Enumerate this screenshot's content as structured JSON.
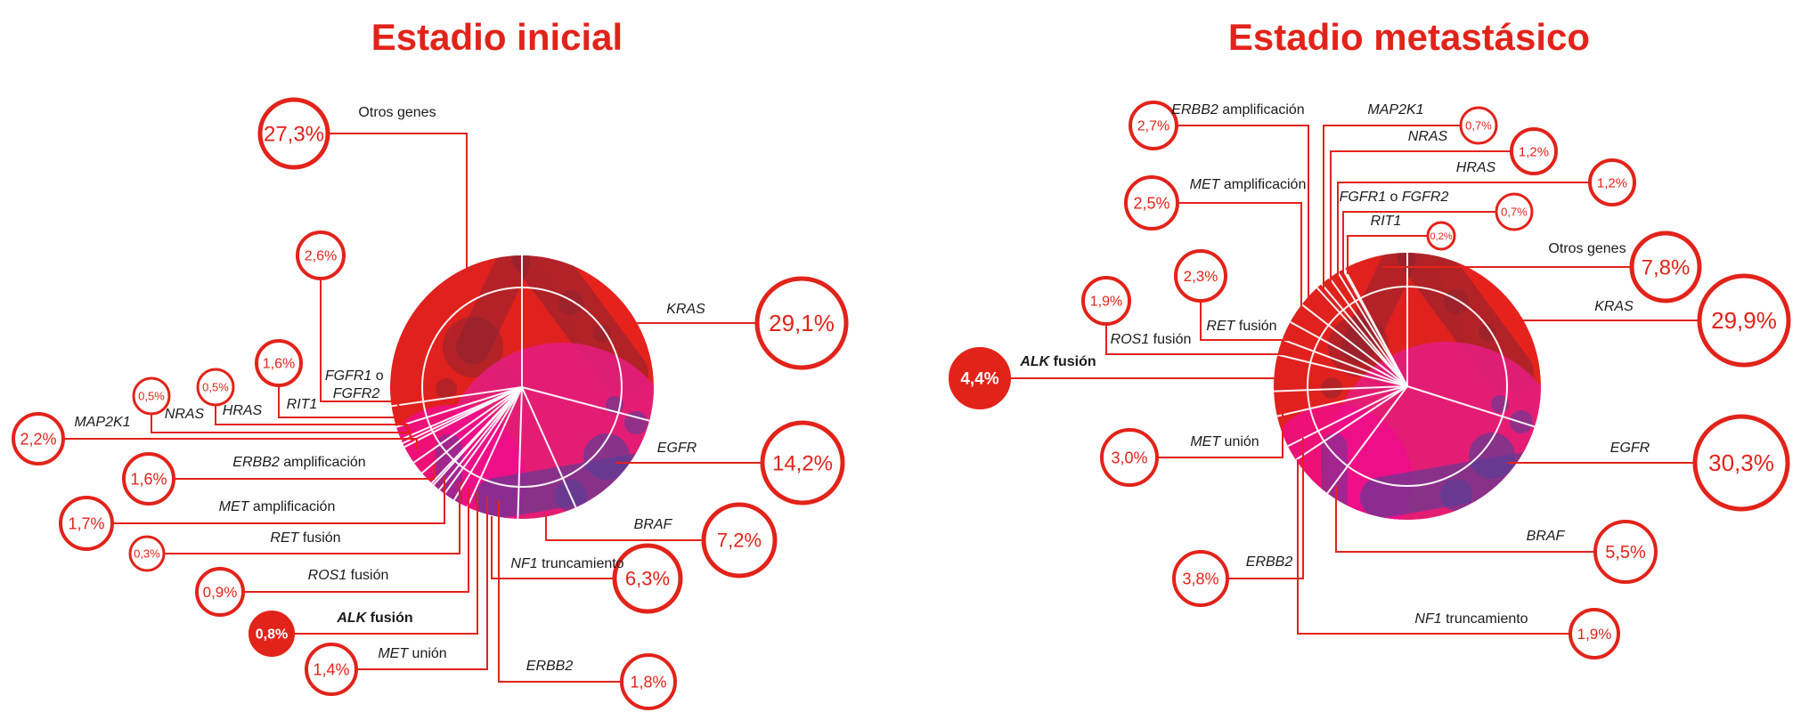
{
  "colors": {
    "red": "#e2231a",
    "pie_base": "#e6221d",
    "magenta": "#e41d7c",
    "pink": "#f00d8d",
    "purple": "#583d96",
    "maroon": "#7f2433",
    "text": "#1b1b1b",
    "white": "#ffffff"
  },
  "chart_data": [
    {
      "type": "pie",
      "title": "Estadio inicial",
      "unit": "%",
      "start_angle_deg": 0,
      "direction": "clockwise",
      "legend_position": "around",
      "segments": [
        {
          "id": "kras",
          "label": "KRAS",
          "parts": [
            {
              "t": "KRAS",
              "i": true
            }
          ],
          "value": 29.1,
          "display": "29,1%",
          "filled": false,
          "bold": false
        },
        {
          "id": "egfr",
          "label": "EGFR",
          "parts": [
            {
              "t": "EGFR",
              "i": true
            }
          ],
          "value": 14.2,
          "display": "14,2%",
          "filled": false,
          "bold": false
        },
        {
          "id": "braf",
          "label": "BRAF",
          "parts": [
            {
              "t": "BRAF",
              "i": true
            }
          ],
          "value": 7.2,
          "display": "7,2%",
          "filled": false,
          "bold": false
        },
        {
          "id": "nf1",
          "label": "NF1 truncamiento",
          "parts": [
            {
              "t": "NF1",
              "i": true
            },
            {
              "t": " truncamiento",
              "i": false
            }
          ],
          "value": 6.3,
          "display": "6,3%",
          "filled": false,
          "bold": false
        },
        {
          "id": "erbb2",
          "label": "ERBB2",
          "parts": [
            {
              "t": "ERBB2",
              "i": true
            }
          ],
          "value": 1.8,
          "display": "1,8%",
          "filled": false,
          "bold": false
        },
        {
          "id": "met-union",
          "label": "MET unión",
          "parts": [
            {
              "t": "MET",
              "i": true
            },
            {
              "t": " unión",
              "i": false
            }
          ],
          "value": 1.4,
          "display": "1,4%",
          "filled": false,
          "bold": false
        },
        {
          "id": "alk",
          "label": "ALK fusión",
          "parts": [
            {
              "t": "ALK",
              "i": true
            },
            {
              "t": " fusión",
              "i": false
            }
          ],
          "value": 0.8,
          "display": "0,8%",
          "filled": true,
          "bold": true
        },
        {
          "id": "ros1",
          "label": "ROS1 fusión",
          "parts": [
            {
              "t": "ROS1",
              "i": true
            },
            {
              "t": " fusión",
              "i": false
            }
          ],
          "value": 0.9,
          "display": "0,9%",
          "filled": false,
          "bold": false
        },
        {
          "id": "ret",
          "label": "RET fusión",
          "parts": [
            {
              "t": "RET",
              "i": true
            },
            {
              "t": " fusión",
              "i": false
            }
          ],
          "value": 0.3,
          "display": "0,3%",
          "filled": false,
          "bold": false
        },
        {
          "id": "met-amp",
          "label": "MET amplificación",
          "parts": [
            {
              "t": "MET",
              "i": true
            },
            {
              "t": " amplificación",
              "i": false
            }
          ],
          "value": 1.7,
          "display": "1,7%",
          "filled": false,
          "bold": false
        },
        {
          "id": "erbb2-amp",
          "label": "ERBB2 amplificación",
          "parts": [
            {
              "t": "ERBB2",
              "i": true
            },
            {
              "t": " amplificación",
              "i": false
            }
          ],
          "value": 1.6,
          "display": "1,6%",
          "filled": false,
          "bold": false
        },
        {
          "id": "map2k1",
          "label": "MAP2K1",
          "parts": [
            {
              "t": "MAP2K1",
              "i": true
            }
          ],
          "value": 2.2,
          "display": "2,2%",
          "filled": false,
          "bold": false
        },
        {
          "id": "nras",
          "label": "NRAS",
          "parts": [
            {
              "t": "NRAS",
              "i": true
            }
          ],
          "value": 0.5,
          "display": "0,5%",
          "filled": false,
          "bold": false
        },
        {
          "id": "hras",
          "label": "HRAS",
          "parts": [
            {
              "t": "HRAS",
              "i": true
            }
          ],
          "value": 0.5,
          "display": "0,5%",
          "filled": false,
          "bold": false
        },
        {
          "id": "rit1",
          "label": "RIT1",
          "parts": [
            {
              "t": "RIT1",
              "i": true
            }
          ],
          "value": 1.6,
          "display": "1,6%",
          "filled": false,
          "bold": false
        },
        {
          "id": "fgfr",
          "label": "FGFR1 o FGFR2",
          "parts": [
            {
              "t": "FGFR1",
              "i": true
            },
            {
              "t": " o ",
              "i": false
            },
            {
              "t": "FGFR2",
              "i": true
            }
          ],
          "value": 2.6,
          "display": "2,6%",
          "filled": false,
          "bold": false
        },
        {
          "id": "otros",
          "label": "Otros genes",
          "parts": [
            {
              "t": "Otros genes",
              "i": false
            }
          ],
          "value": 27.3,
          "display": "27,3%",
          "filled": false,
          "bold": false
        }
      ]
    },
    {
      "type": "pie",
      "title": "Estadio metastásico",
      "unit": "%",
      "start_angle_deg": 0,
      "direction": "clockwise",
      "legend_position": "around",
      "segments": [
        {
          "id": "kras",
          "label": "KRAS",
          "parts": [
            {
              "t": "KRAS",
              "i": true
            }
          ],
          "value": 29.9,
          "display": "29,9%",
          "filled": false,
          "bold": false
        },
        {
          "id": "egfr",
          "label": "EGFR",
          "parts": [
            {
              "t": "EGFR",
              "i": true
            }
          ],
          "value": 30.3,
          "display": "30,3%",
          "filled": false,
          "bold": false
        },
        {
          "id": "braf",
          "label": "BRAF",
          "parts": [
            {
              "t": "BRAF",
              "i": true
            }
          ],
          "value": 5.5,
          "display": "5,5%",
          "filled": false,
          "bold": false
        },
        {
          "id": "nf1",
          "label": "NF1 truncamiento",
          "parts": [
            {
              "t": "NF1",
              "i": true
            },
            {
              "t": " truncamiento",
              "i": false
            }
          ],
          "value": 1.9,
          "display": "1,9%",
          "filled": false,
          "bold": false
        },
        {
          "id": "erbb2",
          "label": "ERBB2",
          "parts": [
            {
              "t": "ERBB2",
              "i": true
            }
          ],
          "value": 3.8,
          "display": "3,8%",
          "filled": false,
          "bold": false
        },
        {
          "id": "met-union",
          "label": "MET unión",
          "parts": [
            {
              "t": "MET",
              "i": true
            },
            {
              "t": " unión",
              "i": false
            }
          ],
          "value": 3.0,
          "display": "3,0%",
          "filled": false,
          "bold": false
        },
        {
          "id": "alk",
          "label": "ALK fusión",
          "parts": [
            {
              "t": "ALK",
              "i": true
            },
            {
              "t": " fusión",
              "i": false
            }
          ],
          "value": 4.4,
          "display": "4,4%",
          "filled": true,
          "bold": true
        },
        {
          "id": "ros1",
          "label": "ROS1 fusión",
          "parts": [
            {
              "t": "ROS1",
              "i": true
            },
            {
              "t": " fusión",
              "i": false
            }
          ],
          "value": 1.9,
          "display": "1,9%",
          "filled": false,
          "bold": false
        },
        {
          "id": "ret",
          "label": "RET fusión",
          "parts": [
            {
              "t": "RET",
              "i": true
            },
            {
              "t": " fusión",
              "i": false
            }
          ],
          "value": 2.3,
          "display": "2,3%",
          "filled": false,
          "bold": false
        },
        {
          "id": "met-amp",
          "label": "MET amplificación",
          "parts": [
            {
              "t": "MET",
              "i": true
            },
            {
              "t": " amplificación",
              "i": false
            }
          ],
          "value": 2.5,
          "display": "2,5%",
          "filled": false,
          "bold": false
        },
        {
          "id": "erbb2-amp",
          "label": "ERBB2 amplificación",
          "parts": [
            {
              "t": "ERBB2",
              "i": true
            },
            {
              "t": " amplificación",
              "i": false
            }
          ],
          "value": 2.7,
          "display": "2,7%",
          "filled": false,
          "bold": false
        },
        {
          "id": "map2k1",
          "label": "MAP2K1",
          "parts": [
            {
              "t": "MAP2K1",
              "i": true
            }
          ],
          "value": 0.7,
          "display": "0,7%",
          "filled": false,
          "bold": false
        },
        {
          "id": "nras",
          "label": "NRAS",
          "parts": [
            {
              "t": "NRAS",
              "i": true
            }
          ],
          "value": 1.2,
          "display": "1,2%",
          "filled": false,
          "bold": false
        },
        {
          "id": "hras",
          "label": "HRAS",
          "parts": [
            {
              "t": "HRAS",
              "i": true
            }
          ],
          "value": 1.2,
          "display": "1,2%",
          "filled": false,
          "bold": false
        },
        {
          "id": "fgfr",
          "label": "FGFR1 o FGFR2",
          "parts": [
            {
              "t": "FGFR1",
              "i": true
            },
            {
              "t": " o ",
              "i": false
            },
            {
              "t": "FGFR2",
              "i": true
            }
          ],
          "value": 0.7,
          "display": "0,7%",
          "filled": false,
          "bold": false
        },
        {
          "id": "rit1",
          "label": "RIT1",
          "parts": [
            {
              "t": "RIT1",
              "i": true
            }
          ],
          "value": 0.2,
          "display": "0,2%",
          "filled": false,
          "bold": false
        },
        {
          "id": "otros",
          "label": "Otros genes",
          "parts": [
            {
              "t": "Otros genes",
              "i": false
            }
          ],
          "value": 7.8,
          "display": "7,8%",
          "filled": false,
          "bold": false
        }
      ]
    }
  ]
}
